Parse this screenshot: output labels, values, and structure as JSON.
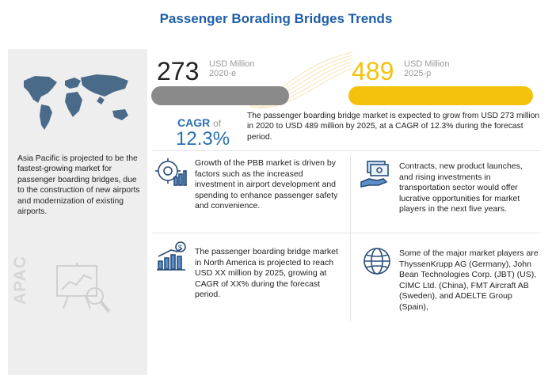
{
  "title": "Passenger Borading Bridges Trends",
  "stats": {
    "current": {
      "value": "273",
      "unit": "USD Million",
      "year": "2020-e"
    },
    "forecast": {
      "value": "489",
      "unit": "USD Million",
      "year": "2025-p"
    }
  },
  "cagr": {
    "label": "CAGR",
    "of": "of",
    "value": "12.3%"
  },
  "market_text": "The passenger boarding bridge market is expected to grow from USD 273 million in 2020 to USD 489 million by 2025, at a CAGR of 12.3% during the forecast period.",
  "left": {
    "text": "Asia Pacific is projected to be the fastest-growing market for passenger boarding bridges, due to the construction of new airports and modernization of existing airports.",
    "region": "APAC"
  },
  "blocks": {
    "drivers": "Growth of the PBB market is driven by factors such as the increased investment in airport development and spending to enhance passenger safety and convenience.",
    "opportunities": "Contracts, new product launches, and rising investments in transportation sector would offer lucrative opportunities for market players in the next five years.",
    "north_america": "The passenger boarding bridge market in North America is projected to reach USD XX million by 2025, growing at CAGR of XX% during the forecast period.",
    "players": "Some of the major market players are ThyssenKrupp AG (Germany), John Bean Technologies Corp. (JBT) (US), CIMC Ltd. (China), FMT Aircraft AB (Sweden), and ADELTE Group (Spain),"
  },
  "colors": {
    "title": "#1f5fa8",
    "accent_blue": "#2a6fb0",
    "bar_grey": "#8a8a8a",
    "bar_yellow": "#f4c20d",
    "panel_grey": "#eeeeee"
  },
  "icons": [
    "world-map-icon",
    "analysis-chart-icon",
    "gear-chart-icon",
    "money-hand-icon",
    "growth-bars-icon",
    "globe-people-icon"
  ]
}
